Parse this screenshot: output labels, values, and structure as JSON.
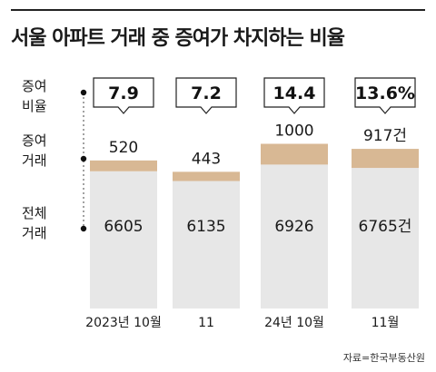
{
  "title": "서울 아파트 거래 중 증여가 차지하는 비율",
  "source": "자료=한국부동산원",
  "chart_data": {
    "type": "bar",
    "stacked": true,
    "categories": [
      "2023년 10월",
      "11",
      "24년 10월",
      "11월"
    ],
    "series": [
      {
        "name": "전체\n거래",
        "values": [
          6605,
          6135,
          6926,
          6765
        ],
        "labels": [
          "6605",
          "6135",
          "6926",
          "6765건"
        ],
        "color": "#e7e7e7"
      },
      {
        "name": "증여\n거래",
        "values": [
          520,
          443,
          1000,
          917
        ],
        "labels": [
          "520",
          "443",
          "1000",
          "917건"
        ],
        "color": "#d8b894"
      }
    ],
    "gift_ratio": {
      "name": "증여\n비율",
      "values": [
        7.9,
        7.2,
        14.4,
        13.6
      ],
      "labels": [
        "7.9",
        "7.2",
        "14.4",
        "13.6%"
      ]
    }
  },
  "colors": {
    "total": "#e7e7e7",
    "gift": "#d8b894",
    "text": "#1a1a1a",
    "axis": "#333333"
  }
}
